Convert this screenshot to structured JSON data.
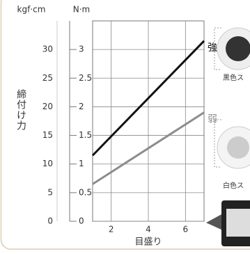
{
  "chart_data": {
    "type": "line",
    "y_title": "締付け力",
    "x_title": "目盛り",
    "y2_unit": "kgf·cm",
    "y_unit": "N·m",
    "x": [
      1,
      7
    ],
    "series": [
      {
        "name": "強",
        "color": "#111111",
        "values": [
          1.15,
          3.15
        ]
      },
      {
        "name": "弱",
        "color": "#8c8c8c",
        "values": [
          0.65,
          1.9
        ]
      }
    ],
    "xlim": [
      1,
      7
    ],
    "xticks": [
      2,
      4,
      6
    ],
    "ylim": [
      0,
      3.5
    ],
    "yticks": [
      0,
      0.5,
      1.0,
      1.5,
      2.0,
      2.5,
      3.0
    ],
    "y2lim": [
      0,
      35
    ],
    "y2ticks": [
      0,
      5,
      10,
      15,
      20,
      25,
      30
    ],
    "grid": true
  },
  "captions": [
    "黒色ス",
    "白色ス"
  ]
}
